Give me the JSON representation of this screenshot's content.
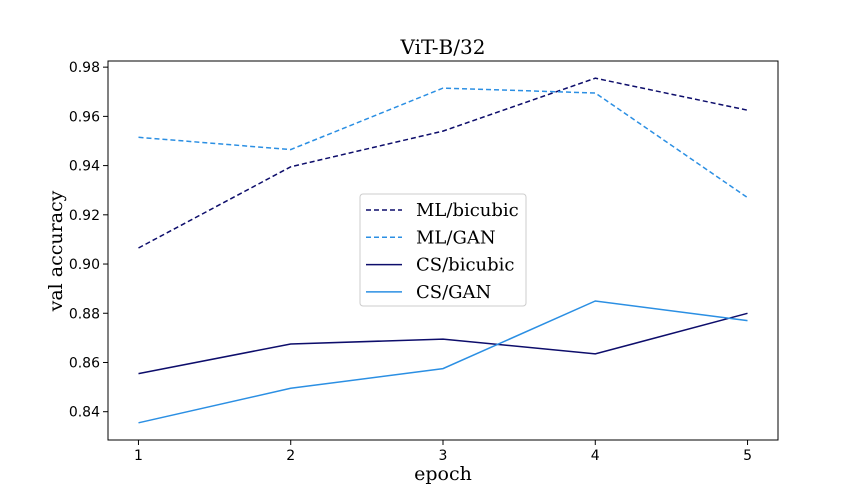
{
  "chart_data": {
    "type": "line",
    "title": "ViT-B/32",
    "xlabel": "epoch",
    "ylabel": "val accuracy",
    "x": [
      1,
      2,
      3,
      4,
      5
    ],
    "xticks": [
      "1",
      "2",
      "3",
      "4",
      "5"
    ],
    "yticks": [
      "0.84",
      "0.86",
      "0.88",
      "0.90",
      "0.92",
      "0.94",
      "0.96",
      "0.98"
    ],
    "xlim": [
      0.8,
      5.2
    ],
    "ylim": [
      0.8285,
      0.9825
    ],
    "grid": false,
    "legend_position": "center",
    "series": [
      {
        "name": "ML/bicubic",
        "values": [
          0.9065,
          0.9395,
          0.954,
          0.9755,
          0.9625
        ],
        "color": "#0d0d6b",
        "style": "dashed"
      },
      {
        "name": "ML/GAN",
        "values": [
          0.9515,
          0.9465,
          0.9715,
          0.9695,
          0.927
        ],
        "color": "#2b8fe3",
        "style": "dashed"
      },
      {
        "name": "CS/bicubic",
        "values": [
          0.8555,
          0.8675,
          0.8695,
          0.8635,
          0.88
        ],
        "color": "#0d0d6b",
        "style": "solid"
      },
      {
        "name": "CS/GAN",
        "values": [
          0.8355,
          0.8495,
          0.8575,
          0.885,
          0.877
        ],
        "color": "#2b8fe3",
        "style": "solid"
      }
    ]
  }
}
